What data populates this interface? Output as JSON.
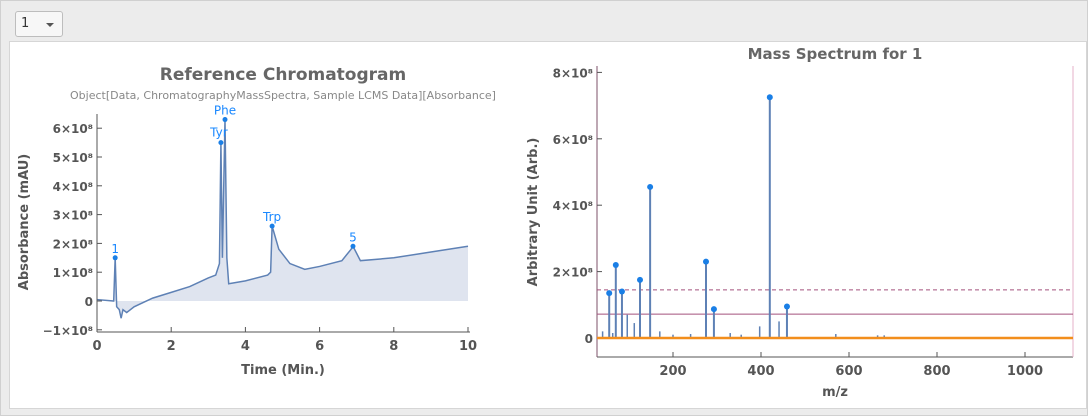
{
  "selector": {
    "value": "1"
  },
  "chart_data": [
    {
      "type": "area",
      "title": "Reference Chromatogram",
      "subtitle": "Object[Data, ChromatographyMassSpectra, Sample LCMS Data][Absorbance]",
      "xlabel": "Time (Min.)",
      "ylabel": "Absorbance (mAU)",
      "xlim": [
        0,
        10
      ],
      "ylim": [
        -110000000.0,
        660000000.0
      ],
      "xticks": [
        "0",
        "2",
        "4",
        "6",
        "8",
        "10"
      ],
      "yticks": [
        {
          "v": -1,
          "label": "−1×10⁸"
        },
        {
          "v": 0,
          "label": "0"
        },
        {
          "v": 1,
          "label": "1×10⁸"
        },
        {
          "v": 2,
          "label": "2×10⁸"
        },
        {
          "v": 3,
          "label": "3×10⁸"
        },
        {
          "v": 4,
          "label": "4×10⁸"
        },
        {
          "v": 5,
          "label": "5×10⁸"
        },
        {
          "v": 6,
          "label": "6×10⁸"
        }
      ],
      "y_unit_note": "values in units of 1e8",
      "x": [
        0,
        0.45,
        0.49,
        0.53,
        0.6,
        0.65,
        0.7,
        0.8,
        1.0,
        1.5,
        2.0,
        2.5,
        3.0,
        3.2,
        3.3,
        3.34,
        3.38,
        3.45,
        3.5,
        3.55,
        4.0,
        4.6,
        4.68,
        4.72,
        4.9,
        5.2,
        5.6,
        6.0,
        6.6,
        6.85,
        6.9,
        7.1,
        8,
        9,
        10
      ],
      "y": [
        0.05,
        0,
        1.5,
        -0.2,
        -0.3,
        -0.6,
        -0.3,
        -0.4,
        -0.2,
        0.1,
        0.3,
        0.5,
        0.8,
        0.9,
        1.3,
        5.5,
        1.5,
        6.3,
        1.5,
        0.6,
        0.7,
        0.9,
        1.0,
        2.6,
        1.8,
        1.3,
        1.1,
        1.2,
        1.4,
        1.8,
        1.9,
        1.4,
        1.5,
        1.7,
        1.9
      ],
      "peaks": [
        {
          "label": "1",
          "t": 0.49,
          "v": 1.5
        },
        {
          "label": "Tyr",
          "t": 3.34,
          "v": 5.5
        },
        {
          "label": "Phe",
          "t": 3.45,
          "v": 6.3
        },
        {
          "label": "Trp",
          "t": 4.72,
          "v": 2.6
        },
        {
          "label": "5",
          "t": 6.9,
          "v": 1.9
        }
      ],
      "colors": {
        "line": "#5e81b5",
        "fill": "#dfe4ef",
        "peak": "#1a7fe6"
      }
    },
    {
      "type": "stem",
      "title": "Mass Spectrum for 1",
      "xlabel": "m/z",
      "ylabel": "Arbitrary Unit (Arb.)",
      "xlim": [
        27,
        1105
      ],
      "ylim": [
        -50000000.0,
        810000000.0
      ],
      "xticks": [
        "200",
        "400",
        "600",
        "800",
        "1000"
      ],
      "yticks": [
        {
          "v": 0,
          "label": "0"
        },
        {
          "v": 2,
          "label": "2×10⁸"
        },
        {
          "v": 4,
          "label": "4×10⁸"
        },
        {
          "v": 6,
          "label": "6×10⁸"
        },
        {
          "v": 8,
          "label": "8×10⁸"
        }
      ],
      "y_unit_note": "values in units of 1e8",
      "peaks": [
        {
          "mz": 55,
          "v": 1.35
        },
        {
          "mz": 70,
          "v": 2.2
        },
        {
          "mz": 84,
          "v": 1.4
        },
        {
          "mz": 125,
          "v": 1.75
        },
        {
          "mz": 148,
          "v": 4.55
        },
        {
          "mz": 275,
          "v": 2.3
        },
        {
          "mz": 293,
          "v": 0.87
        },
        {
          "mz": 420,
          "v": 7.25
        },
        {
          "mz": 459,
          "v": 0.95
        }
      ],
      "minor_peaks": [
        {
          "mz": 40,
          "v": 0.2
        },
        {
          "mz": 63,
          "v": 0.15
        },
        {
          "mz": 96,
          "v": 0.7
        },
        {
          "mz": 112,
          "v": 0.45
        },
        {
          "mz": 170,
          "v": 0.2
        },
        {
          "mz": 200,
          "v": 0.1
        },
        {
          "mz": 240,
          "v": 0.12
        },
        {
          "mz": 330,
          "v": 0.15
        },
        {
          "mz": 355,
          "v": 0.1
        },
        {
          "mz": 397,
          "v": 0.35
        },
        {
          "mz": 441,
          "v": 0.5
        },
        {
          "mz": 570,
          "v": 0.12
        },
        {
          "mz": 665,
          "v": 0.08
        },
        {
          "mz": 680,
          "v": 0.08
        }
      ],
      "threshold_dashed": 1.45,
      "threshold_solid": 0.72,
      "colors": {
        "stem": "#5e81b5",
        "peak": "#1a7fe6",
        "baseline": "#f28e1c",
        "threshold": "#a3507c"
      }
    }
  ]
}
